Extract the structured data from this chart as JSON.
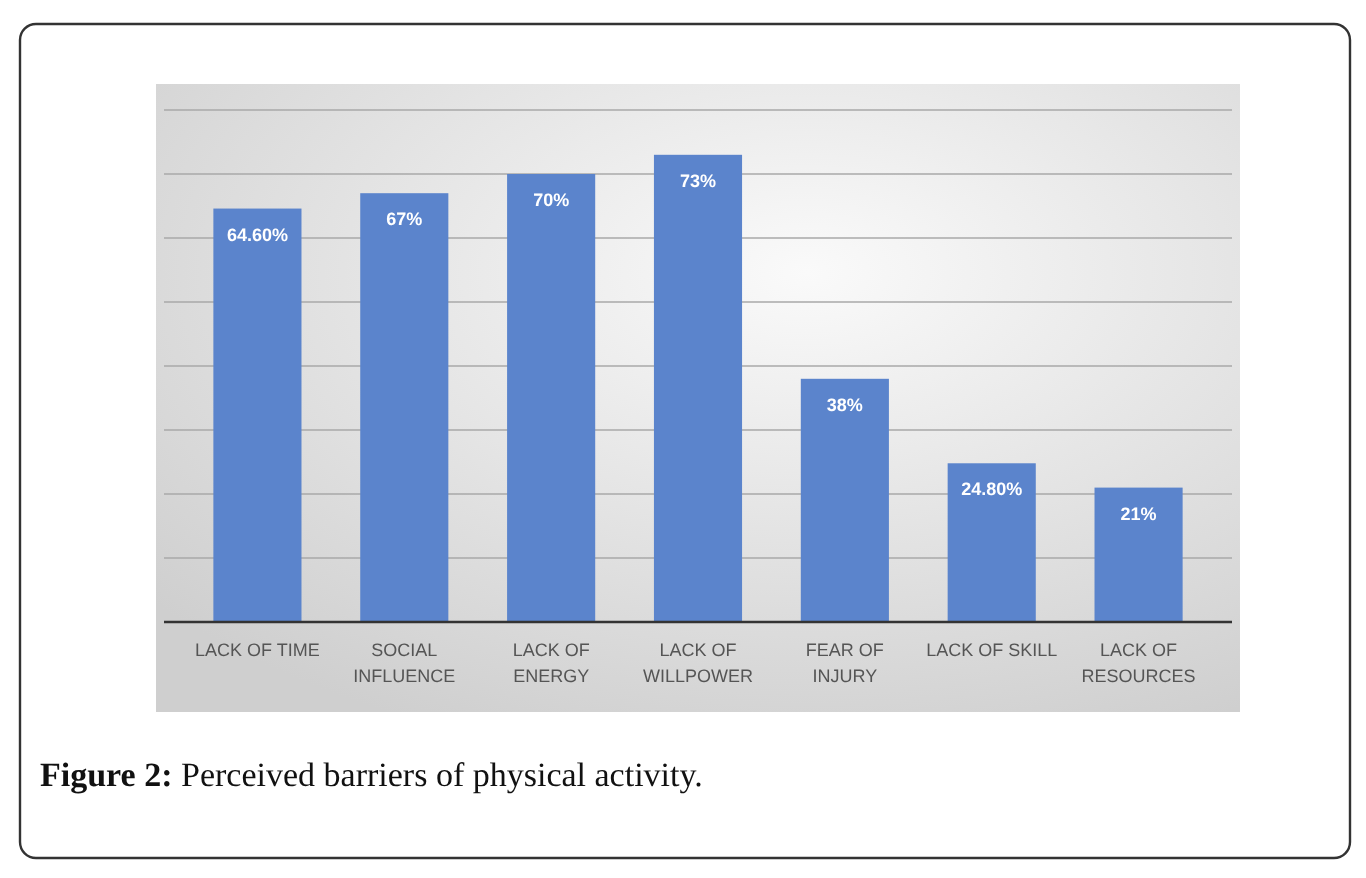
{
  "chart_data": {
    "type": "bar",
    "categories": [
      "LACK OF TIME",
      "SOCIAL\nINFLUENCE",
      "LACK OF\nENERGY",
      "LACK OF\nWILLPOWER",
      "FEAR OF\nINJURY",
      "LACK OF SKILL",
      "LACK OF\nRESOURCES"
    ],
    "values": [
      64.6,
      67,
      70,
      73,
      38,
      24.8,
      21
    ],
    "value_labels": [
      "64.60%",
      "67%",
      "70%",
      "73%",
      "38%",
      "24.80%",
      "21%"
    ],
    "color": "#5b84cc",
    "ylim": [
      0,
      80
    ],
    "yticks": [
      {
        "value": 0,
        "label": null
      },
      {
        "value": 10,
        "label": null
      },
      {
        "value": 20,
        "label": null
      },
      {
        "value": 30,
        "label": null
      },
      {
        "value": 40,
        "label": null
      },
      {
        "value": 50,
        "label": null
      },
      {
        "value": 60,
        "label": null
      },
      {
        "value": 70,
        "label": null
      },
      {
        "value": 80,
        "label": null
      }
    ],
    "grid": "y",
    "tick_labels": "x",
    "annotations": [
      "Figure 2: Perceived barriers of physical activity."
    ]
  }
}
